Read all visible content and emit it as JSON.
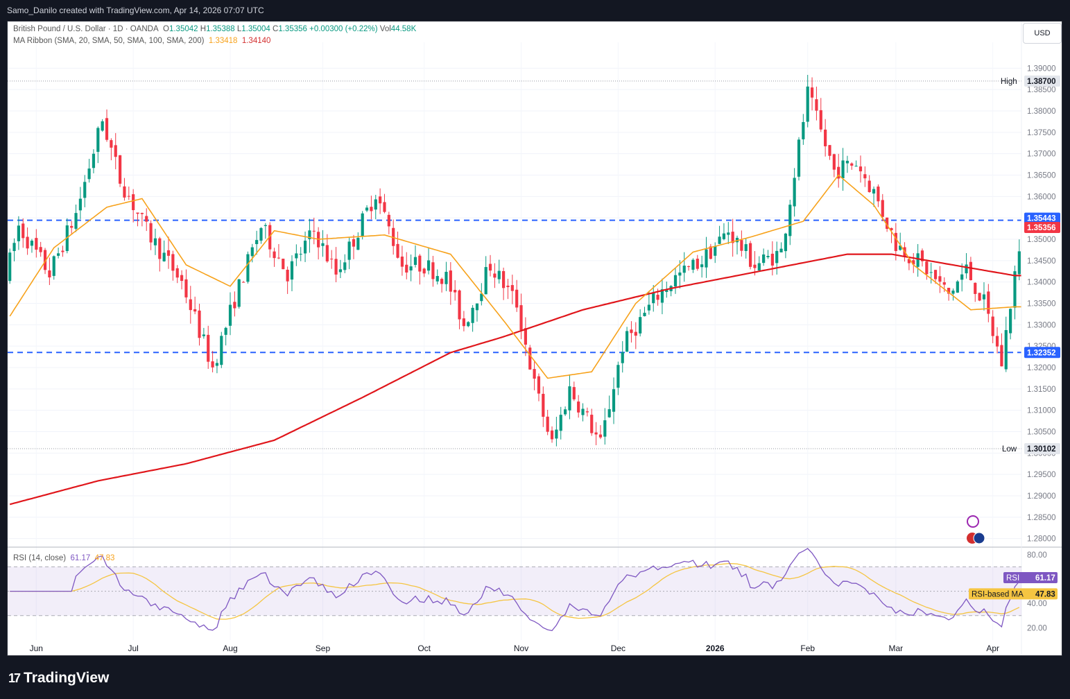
{
  "header": {
    "credit": "Samo_Danilo created with TradingView.com, Apr 14, 2026 07:07 UTC"
  },
  "legend": {
    "symbol": "British Pound / U.S. Dollar · 1D · OANDA",
    "o_label": "O",
    "o": "1.35042",
    "h_label": "H",
    "h": "1.35388",
    "l_label": "L",
    "l": "1.35004",
    "c_label": "C",
    "c": "1.35356",
    "change": "+0.00300 (+0.22%)",
    "vol_label": "Vol",
    "vol": "44.58K",
    "ma_title": "MA Ribbon (SMA, 20, SMA, 50, SMA, 100, SMA, 200)",
    "ma_val1": "1.33418",
    "ma_val2": "1.34140",
    "rsi_title": "RSI (14, close)",
    "rsi_val": "61.17",
    "rsi_ma_val": "47.83"
  },
  "currency_button": "USD",
  "brand": {
    "name": "TradingView",
    "logo_glyph": "17"
  },
  "colors": {
    "up": "#089981",
    "down": "#f23645",
    "ma_orange": "#f7a21b",
    "ma_red": "#e0161b",
    "level": "#2962ff",
    "rsi": "#7e57c2",
    "rsi_ma": "#f5c542"
  },
  "chart_data": {
    "type": "candlestick",
    "symbol": "GBPUSD",
    "timeframe": "1D",
    "price_axis": {
      "min": 1.278,
      "max": 1.392,
      "ticks": [
        1.28,
        1.285,
        1.29,
        1.295,
        1.3,
        1.305,
        1.31,
        1.315,
        1.32,
        1.325,
        1.33,
        1.335,
        1.34,
        1.345,
        1.35,
        1.355,
        1.36,
        1.365,
        1.37,
        1.375,
        1.38,
        1.385,
        1.39
      ]
    },
    "time_axis": [
      "Jun",
      "Jul",
      "Aug",
      "Sep",
      "Oct",
      "Nov",
      "Dec",
      "2026",
      "Feb",
      "Mar",
      "Apr"
    ],
    "time_axis_bar_index": [
      6,
      28,
      50,
      71,
      94,
      116,
      138,
      160,
      181,
      201,
      223
    ],
    "levels": [
      {
        "label": "1.35443",
        "value": 1.35443
      },
      {
        "label": "1.32352",
        "value": 1.32352
      }
    ],
    "high": {
      "label": "High",
      "value": 1.387
    },
    "low": {
      "label": "Low",
      "value": 1.30102
    },
    "last_price": {
      "label": "1.35356",
      "value": 1.35356
    },
    "ma_20_anchors": [
      [
        0,
        1.332
      ],
      [
        10,
        1.348
      ],
      [
        22,
        1.3575
      ],
      [
        30,
        1.3595
      ],
      [
        40,
        1.344
      ],
      [
        50,
        1.339
      ],
      [
        60,
        1.352
      ],
      [
        70,
        1.35
      ],
      [
        85,
        1.351
      ],
      [
        100,
        1.3465
      ],
      [
        112,
        1.331
      ],
      [
        122,
        1.3175
      ],
      [
        132,
        1.319
      ],
      [
        142,
        1.335
      ],
      [
        155,
        1.347
      ],
      [
        168,
        1.3505
      ],
      [
        180,
        1.3542
      ],
      [
        188,
        1.365
      ],
      [
        196,
        1.358
      ],
      [
        205,
        1.344
      ],
      [
        218,
        1.3335
      ],
      [
        228,
        1.3342
      ]
    ],
    "ma_200_anchors": [
      [
        0,
        1.288
      ],
      [
        20,
        1.2935
      ],
      [
        40,
        1.2975
      ],
      [
        60,
        1.303
      ],
      [
        80,
        1.313
      ],
      [
        100,
        1.3235
      ],
      [
        112,
        1.3272
      ],
      [
        130,
        1.3335
      ],
      [
        150,
        1.3385
      ],
      [
        170,
        1.3425
      ],
      [
        190,
        1.3465
      ],
      [
        200,
        1.3465
      ],
      [
        215,
        1.3438
      ],
      [
        228,
        1.3415
      ]
    ],
    "rsi": {
      "name": "RSI",
      "period": 14,
      "last": 61.17,
      "ma_label": "RSI-based MA",
      "ma_last": 47.83,
      "axis_ticks": [
        20,
        40,
        60,
        80
      ],
      "axis_visible_labels": [
        "80.00",
        "40.00",
        "20.00"
      ],
      "band_upper": 70,
      "band_mid": 50,
      "band_lower": 30
    }
  }
}
